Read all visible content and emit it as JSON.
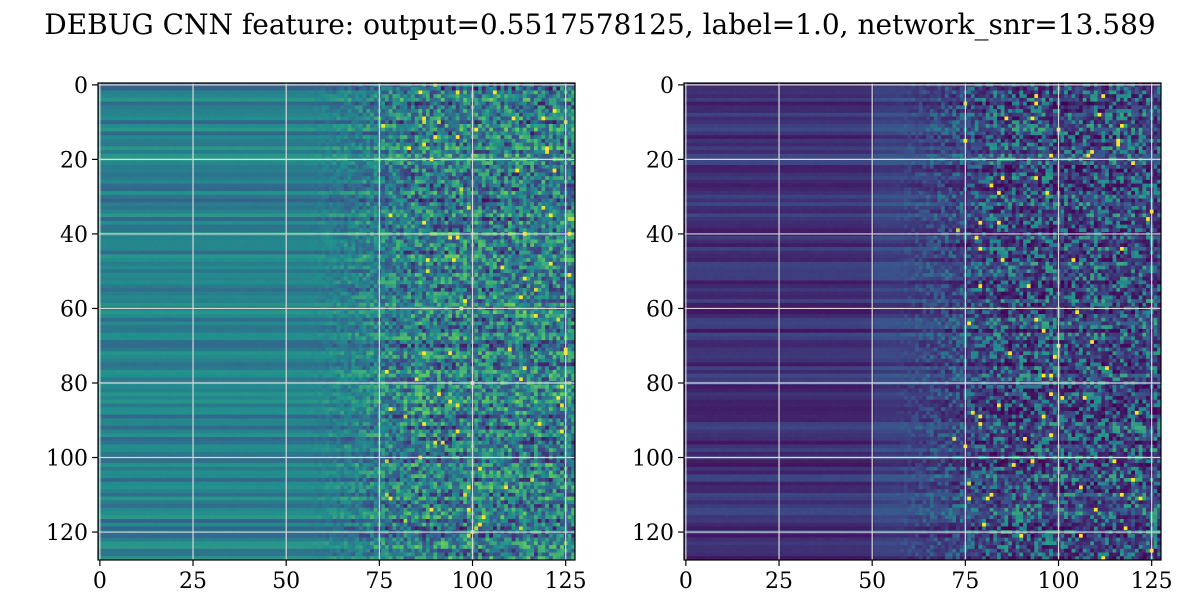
{
  "title": "DEBUG CNN feature: output=0.5517578125, label=1.0, network_snr=13.589",
  "colors": {
    "colormap": [
      "#440154",
      "#3b528b",
      "#21908d",
      "#5dc863",
      "#fde725"
    ],
    "grid": "#d9d9d9",
    "axes": "#000000"
  },
  "chart_data": [
    {
      "type": "heatmap",
      "name_hint": "left",
      "xlim": [
        0,
        127
      ],
      "ylim": [
        127,
        0
      ],
      "xticks": [
        "0",
        "25",
        "50",
        "75",
        "100",
        "125"
      ],
      "yticks": [
        "0",
        "20",
        "40",
        "60",
        "80",
        "100",
        "120"
      ],
      "grid": true,
      "rows": 128,
      "cols": 128,
      "value_range": [
        0,
        1
      ],
      "pattern": "smooth teal-green horizontal bands for columns 0-60, noisier speckled values increasing toward columns 75-127"
    },
    {
      "type": "heatmap",
      "name_hint": "right",
      "xlim": [
        0,
        127
      ],
      "ylim": [
        127,
        0
      ],
      "xticks": [
        "0",
        "25",
        "50",
        "75",
        "100",
        "125"
      ],
      "yticks": [
        "0",
        "20",
        "40",
        "60",
        "80",
        "100",
        "120"
      ],
      "grid": true,
      "rows": 128,
      "cols": 128,
      "value_range": [
        0,
        1
      ],
      "pattern": "dark purple low values for columns 0-50, sparse bright speckles increasing toward columns 75-127"
    }
  ]
}
